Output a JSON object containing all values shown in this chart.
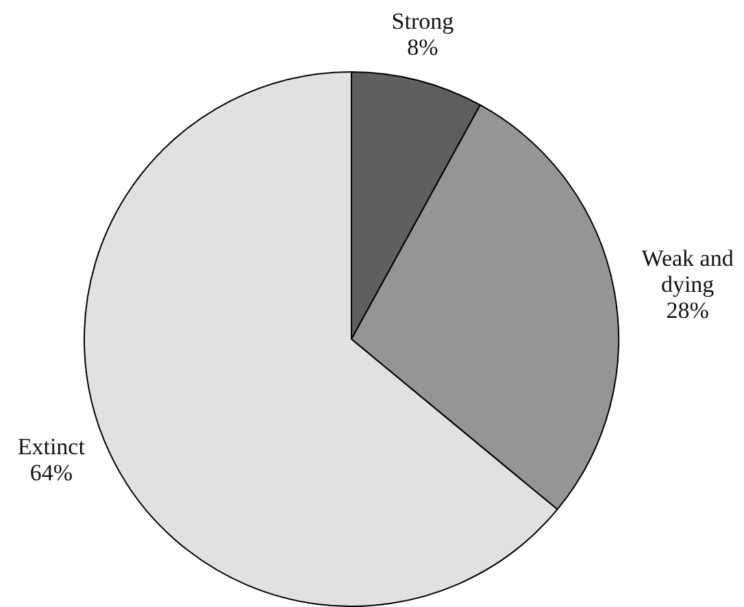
{
  "chart_data": {
    "type": "pie",
    "categories": [
      "Strong",
      "Weak and dying",
      "Extinct"
    ],
    "values": [
      8,
      28,
      64
    ],
    "value_labels": [
      "8%",
      "28%",
      "64%"
    ],
    "colors": [
      "#5f5f61",
      "#959597",
      "#e1e1e3"
    ],
    "legend": false
  }
}
